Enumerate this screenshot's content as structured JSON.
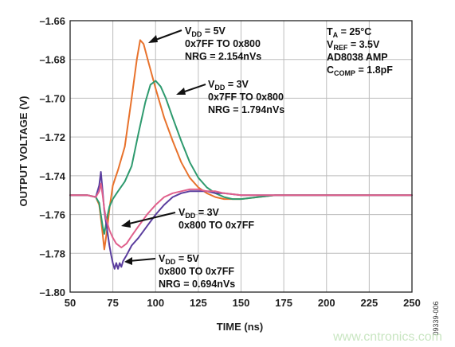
{
  "chart_data": {
    "type": "line",
    "title": "",
    "xlabel": "TIME (ns)",
    "ylabel": "OUTPUT VOLTAGE (V)",
    "xlim": [
      50,
      250
    ],
    "ylim": [
      -1.8,
      -1.66
    ],
    "xticks": [
      "50",
      "75",
      "100",
      "125",
      "150",
      "175",
      "200",
      "225",
      "250"
    ],
    "yticks": [
      "–1.66",
      "–1.68",
      "–1.70",
      "–1.72",
      "–1.74",
      "–1.76",
      "–1.78",
      "–1.80"
    ],
    "grid": true,
    "conditions": [
      {
        "main": "T",
        "sub": "A",
        "rest": " = 25°C"
      },
      {
        "main": "V",
        "sub": "REF",
        "rest": " = 3.5V"
      },
      {
        "main": "AD8038 AMP",
        "sub": "",
        "rest": ""
      },
      {
        "main": "C",
        "sub": "COMP",
        "rest": " = 1.8pF"
      }
    ],
    "series": [
      {
        "color": "#e8722c",
        "label": {
          "v": "V",
          "sub": "DD",
          "rest": " = 5V",
          "line2": "0x7FF TO 0x800",
          "line3": "NRG = 2.154nVs"
        },
        "x": [
          50,
          60,
          65,
          67,
          68,
          69,
          70,
          71,
          72,
          73,
          75,
          78,
          82,
          86,
          89,
          91,
          93,
          96,
          100,
          105,
          110,
          115,
          120,
          125,
          130,
          135,
          140,
          145,
          150,
          160,
          170,
          180,
          200,
          225,
          250
        ],
        "y": [
          -1.75,
          -1.75,
          -1.751,
          -1.755,
          -1.762,
          -1.77,
          -1.778,
          -1.772,
          -1.765,
          -1.757,
          -1.745,
          -1.737,
          -1.725,
          -1.7,
          -1.68,
          -1.67,
          -1.672,
          -1.682,
          -1.695,
          -1.71,
          -1.722,
          -1.733,
          -1.741,
          -1.746,
          -1.749,
          -1.751,
          -1.752,
          -1.752,
          -1.752,
          -1.751,
          -1.75,
          -1.75,
          -1.75,
          -1.75,
          -1.75
        ]
      },
      {
        "color": "#2e9a6e",
        "label": {
          "v": "V",
          "sub": "DD",
          "rest": " = 3V",
          "line2": "0x7FF TO 0x800",
          "line3": "NRG = 1.794nVs"
        },
        "x": [
          50,
          60,
          65,
          67,
          68,
          69,
          70,
          71,
          72,
          73,
          75,
          78,
          82,
          86,
          90,
          94,
          97,
          100,
          103,
          106,
          110,
          115,
          120,
          125,
          130,
          135,
          140,
          145,
          150,
          160,
          170,
          180,
          200,
          225,
          250
        ],
        "y": [
          -1.75,
          -1.75,
          -1.751,
          -1.754,
          -1.76,
          -1.766,
          -1.77,
          -1.765,
          -1.76,
          -1.756,
          -1.752,
          -1.748,
          -1.743,
          -1.735,
          -1.718,
          -1.702,
          -1.693,
          -1.691,
          -1.694,
          -1.7,
          -1.71,
          -1.722,
          -1.733,
          -1.741,
          -1.746,
          -1.749,
          -1.751,
          -1.752,
          -1.752,
          -1.751,
          -1.75,
          -1.75,
          -1.75,
          -1.75,
          -1.75
        ]
      },
      {
        "color": "#5a3d9e",
        "label": {
          "v": "V",
          "sub": "DD",
          "rest": " = 5V",
          "line2": "0x800 TO 0x7FF",
          "line3": "NRG = 0.694nVs"
        },
        "x": [
          50,
          60,
          65,
          67,
          68,
          69,
          70,
          71,
          72,
          73,
          74,
          75,
          76,
          77,
          78,
          79,
          80,
          81,
          83,
          86,
          90,
          95,
          100,
          105,
          110,
          115,
          120,
          125,
          130,
          135,
          140,
          150,
          160,
          175,
          200,
          225,
          250
        ],
        "y": [
          -1.75,
          -1.75,
          -1.751,
          -1.745,
          -1.738,
          -1.748,
          -1.758,
          -1.764,
          -1.77,
          -1.776,
          -1.781,
          -1.785,
          -1.788,
          -1.785,
          -1.788,
          -1.785,
          -1.787,
          -1.784,
          -1.781,
          -1.776,
          -1.772,
          -1.766,
          -1.76,
          -1.755,
          -1.751,
          -1.749,
          -1.748,
          -1.748,
          -1.748,
          -1.749,
          -1.749,
          -1.75,
          -1.75,
          -1.75,
          -1.75,
          -1.75,
          -1.75
        ]
      },
      {
        "color": "#e0608c",
        "label": {
          "v": "V",
          "sub": "DD",
          "rest": " = 3V",
          "line2": "0x800 TO 0x7FF",
          "line3": ""
        },
        "x": [
          50,
          60,
          65,
          67,
          68,
          69,
          70,
          71,
          72,
          73,
          75,
          77,
          80,
          83,
          86,
          90,
          95,
          100,
          105,
          110,
          115,
          120,
          125,
          130,
          135,
          140,
          150,
          160,
          175,
          200,
          225,
          250
        ],
        "y": [
          -1.75,
          -1.75,
          -1.751,
          -1.748,
          -1.744,
          -1.75,
          -1.757,
          -1.762,
          -1.765,
          -1.768,
          -1.772,
          -1.775,
          -1.777,
          -1.775,
          -1.771,
          -1.766,
          -1.76,
          -1.755,
          -1.751,
          -1.749,
          -1.748,
          -1.747,
          -1.747,
          -1.748,
          -1.748,
          -1.749,
          -1.75,
          -1.75,
          -1.75,
          -1.75,
          -1.75,
          -1.75
        ]
      }
    ]
  },
  "figure_id": "09339-006",
  "watermark": "www.cntronics.com"
}
